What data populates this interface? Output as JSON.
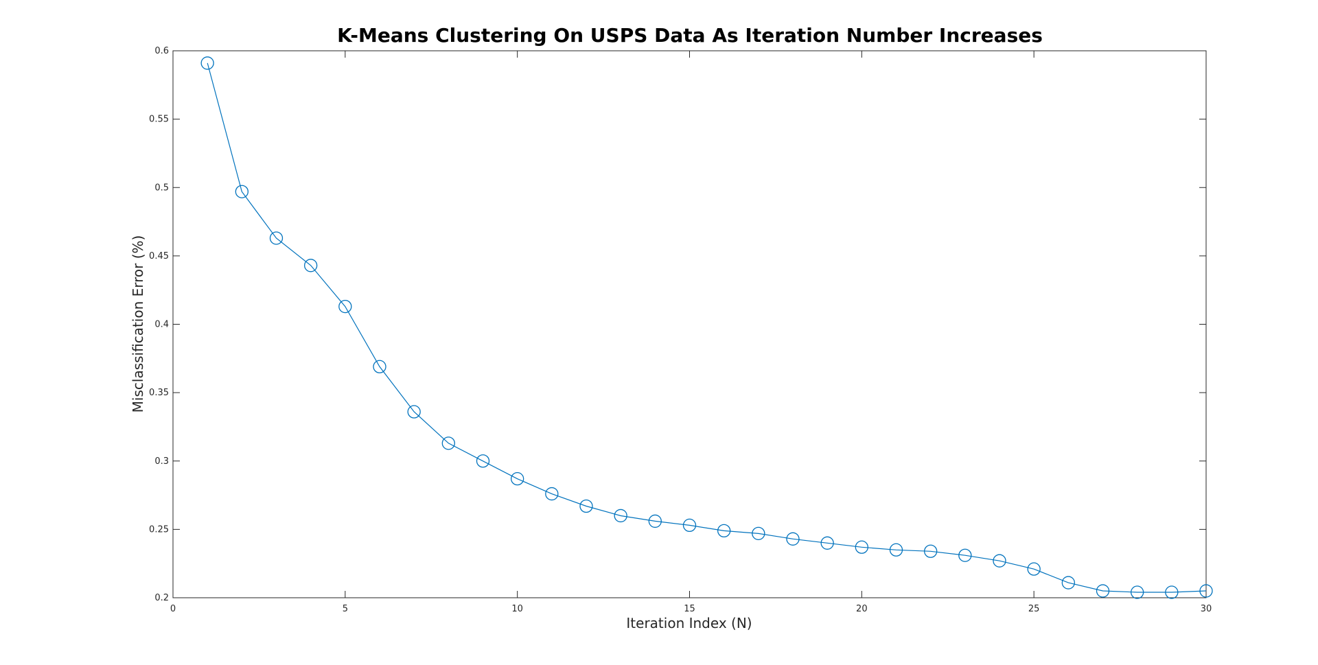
{
  "chart_data": {
    "type": "line",
    "title": "K-Means Clustering On USPS Data As Iteration Number Increases",
    "xlabel": "Iteration Index (N)",
    "ylabel": "Misclassification Error (%)",
    "xlim": [
      0,
      30
    ],
    "ylim": [
      0.2,
      0.6
    ],
    "xticks": [
      0,
      5,
      10,
      15,
      20,
      25,
      30
    ],
    "xtick_labels": [
      "0",
      "5",
      "10",
      "15",
      "20",
      "25",
      "30"
    ],
    "yticks": [
      0.2,
      0.25,
      0.3,
      0.35,
      0.4,
      0.45,
      0.5,
      0.55,
      0.6
    ],
    "ytick_labels": [
      "0.2",
      "0.25",
      "0.3",
      "0.35",
      "0.4",
      "0.45",
      "0.5",
      "0.55",
      "0.6"
    ],
    "grid": false,
    "marker": "circle",
    "color": "#0072BD",
    "series": [
      {
        "x": [
          1,
          2,
          3,
          4,
          5,
          6,
          7,
          8,
          9,
          10,
          11,
          12,
          13,
          14,
          15,
          16,
          17,
          18,
          19,
          20,
          21,
          22,
          23,
          24,
          25,
          26,
          27,
          28,
          29,
          30
        ],
        "values": [
          0.591,
          0.497,
          0.463,
          0.443,
          0.413,
          0.369,
          0.336,
          0.313,
          0.3,
          0.287,
          0.276,
          0.267,
          0.26,
          0.256,
          0.253,
          0.249,
          0.247,
          0.243,
          0.24,
          0.237,
          0.235,
          0.234,
          0.231,
          0.227,
          0.221,
          0.211,
          0.205,
          0.204,
          0.204,
          0.205
        ]
      }
    ]
  }
}
